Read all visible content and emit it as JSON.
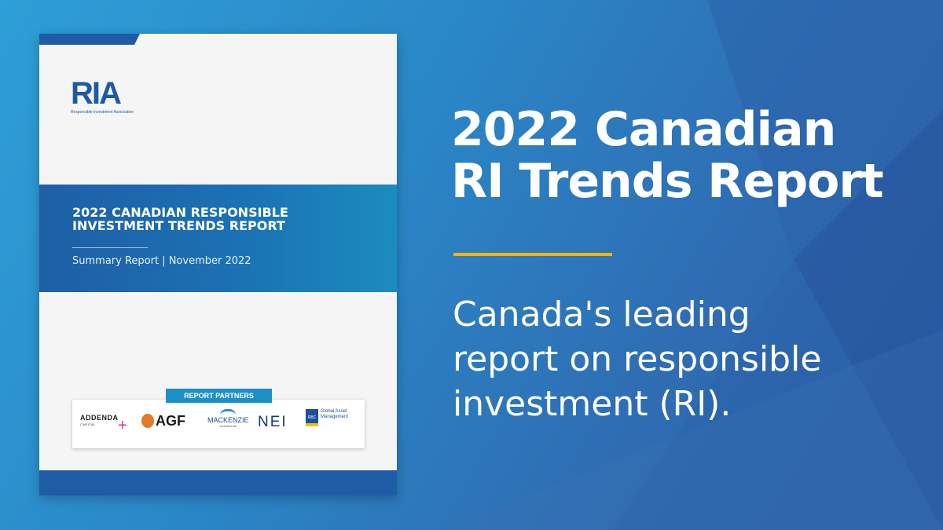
{
  "colors": {
    "background_light": "#2e9fd8",
    "background_dark": "#1f5ca5",
    "accent_rule": "#f2b417",
    "cover_band": "#1f5fa6",
    "partners_tag": "#1c8fc6"
  },
  "cover": {
    "logo_mark": "RIA",
    "logo_subtext": "Responsible Investment Association",
    "title_line1": "2022 Canadian Responsible",
    "title_line2": "Investment Trends Report",
    "subtitle": "Summary Report | November 2022",
    "partners_label": "REPORT PARTNERS",
    "partners": {
      "addenda": "ADDENDA",
      "addenda_sub": "CAPITAL",
      "agf": "AGF",
      "mackenzie": "MACKENZIE",
      "mackenzie_sub": "Investments",
      "nei": "NEI",
      "rbc_shield": "RBC",
      "rbc_line1": "Global Asset",
      "rbc_line2": "Management"
    }
  },
  "headline": {
    "line1": "2022 Canadian",
    "line2": "RI Trends Report"
  },
  "tagline": {
    "line1": "Canada's leading",
    "line2": "report on responsible",
    "line3": "investment (RI)."
  }
}
